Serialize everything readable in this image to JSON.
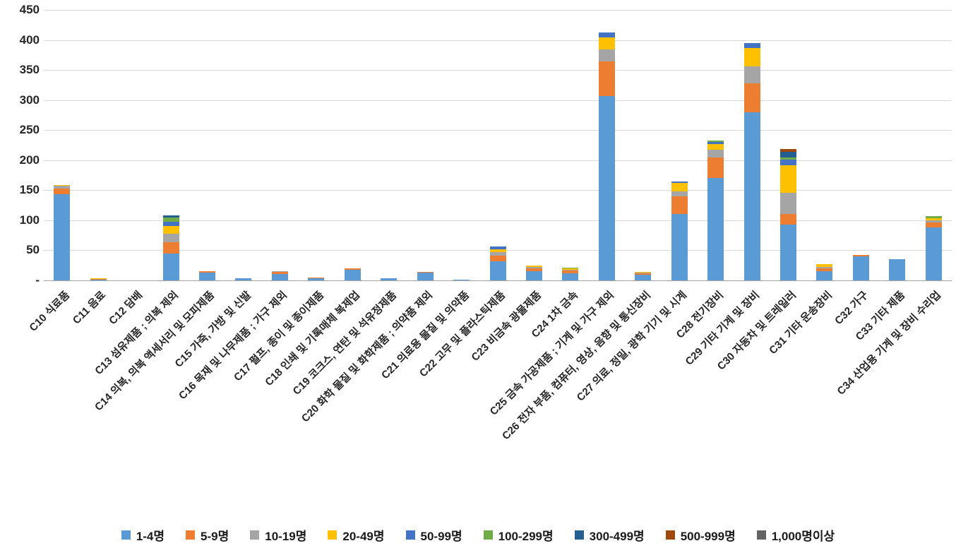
{
  "chart_data": {
    "type": "bar",
    "stacked": true,
    "title": "",
    "xlabel": "",
    "ylabel": "",
    "ylim": [
      0,
      450
    ],
    "ytick_step": 50,
    "ytick_labels": [
      "-",
      "50",
      "100",
      "150",
      "200",
      "250",
      "300",
      "350",
      "400",
      "450"
    ],
    "grid": true,
    "legend_position": "bottom",
    "categories": [
      "C10 식료품",
      "C11 음료",
      "C12 담배",
      "C13 섬유제품 ; 의복 제외",
      "C14 의복, 의복 액세서리 및 모피제품",
      "C15 가죽, 가방 및 신발",
      "C16 목재 및 나무제품 ; 가구 제외",
      "C17 펄프, 종이 및 종이제품",
      "C18 인쇄 및 기록매체 복제업",
      "C19 코크스, 연탄 및 석유정제품",
      "C20 화학 물질 및 화학제품 ; 의약품 제외",
      "C21 의료용 물질 및 의약품",
      "C22 고무 및 플라스틱제품",
      "C23 비금속 광물제품",
      "C24 1차 금속",
      "C25 금속 가공제품 ; 기계 및 가구 제외",
      "C26 전자 부품, 컴퓨터, 영상, 음향 및 통신장비",
      "C27 의료, 정밀, 광학 기기 및 시계",
      "C28 전기장비",
      "C29 기타 기계 및 장비",
      "C30 자동차 및 트레일러",
      "C31 기타 운송장비",
      "C32 가구",
      "C33 기타 제품",
      "C34 산업용 기계 및 장비 수리업"
    ],
    "series": [
      {
        "name": "1-4명",
        "color": "#5B9BD5",
        "values": [
          143,
          1,
          0,
          45,
          13,
          4,
          11,
          3,
          18,
          3,
          13,
          1,
          32,
          15,
          12,
          307,
          10,
          110,
          170,
          280,
          93,
          15,
          40,
          35,
          88
        ]
      },
      {
        "name": "5-9명",
        "color": "#ED7D31",
        "values": [
          10,
          1,
          0,
          18,
          2,
          0,
          3,
          1,
          2,
          0,
          1,
          0,
          9,
          5,
          4,
          57,
          2,
          30,
          35,
          48,
          18,
          5,
          2,
          0,
          8
        ]
      },
      {
        "name": "10-19명",
        "color": "#A5A5A5",
        "values": [
          4,
          0,
          0,
          15,
          0,
          0,
          1,
          0,
          0,
          0,
          0,
          0,
          6,
          2,
          2,
          20,
          1,
          8,
          12,
          28,
          35,
          2,
          0,
          0,
          4
        ]
      },
      {
        "name": "20-49명",
        "color": "#FFC000",
        "values": [
          2,
          1,
          0,
          12,
          0,
          0,
          0,
          0,
          0,
          0,
          0,
          0,
          5,
          3,
          2,
          20,
          1,
          14,
          10,
          30,
          45,
          5,
          0,
          0,
          4
        ]
      },
      {
        "name": "50-99명",
        "color": "#4472C4",
        "values": [
          0,
          0,
          0,
          8,
          0,
          0,
          0,
          0,
          0,
          0,
          0,
          0,
          5,
          0,
          0,
          9,
          0,
          3,
          3,
          9,
          10,
          0,
          0,
          0,
          0
        ]
      },
      {
        "name": "100-299명",
        "color": "#70AD47",
        "values": [
          0,
          0,
          0,
          7,
          0,
          0,
          0,
          0,
          0,
          0,
          0,
          0,
          0,
          0,
          1,
          0,
          0,
          0,
          3,
          0,
          3,
          0,
          0,
          0,
          3
        ]
      },
      {
        "name": "300-499명",
        "color": "#255E91",
        "values": [
          0,
          0,
          0,
          3,
          0,
          0,
          0,
          0,
          0,
          0,
          0,
          0,
          0,
          0,
          0,
          0,
          0,
          0,
          0,
          0,
          10,
          0,
          0,
          0,
          0
        ]
      },
      {
        "name": "500-999명",
        "color": "#9E480E",
        "values": [
          0,
          0,
          0,
          0,
          0,
          0,
          0,
          0,
          0,
          0,
          0,
          0,
          0,
          0,
          0,
          0,
          0,
          0,
          0,
          0,
          4,
          0,
          0,
          0,
          0
        ]
      },
      {
        "name": "1,000명이상",
        "color": "#636363",
        "values": [
          0,
          0,
          0,
          0,
          0,
          0,
          0,
          0,
          0,
          0,
          0,
          0,
          0,
          0,
          0,
          0,
          0,
          0,
          0,
          0,
          0,
          0,
          0,
          0,
          0
        ]
      }
    ]
  },
  "colors": {
    "background": "#FFFFFF",
    "gridline": "#D9D9D9",
    "axis": "#A6A6A6",
    "text": "#262626"
  }
}
